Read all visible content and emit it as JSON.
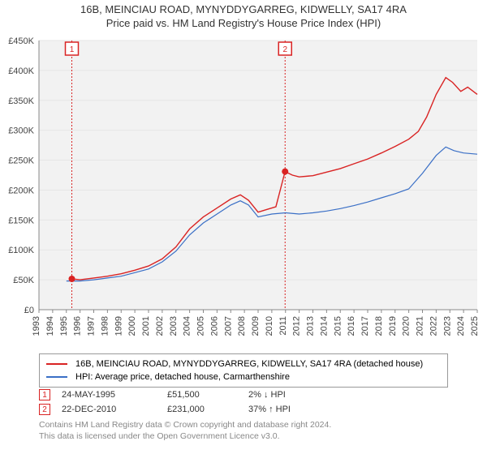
{
  "title_line1": "16B, MEINCIAU ROAD, MYNYDDYGARREG, KIDWELLY, SA17 4RA",
  "title_line2": "Price paid vs. HM Land Registry's House Price Index (HPI)",
  "chart": {
    "type": "line",
    "background_color": "#f2f2f2",
    "grid_color": "#e6e6e6",
    "axis_color": "#888888",
    "ylabel_prefix": "£",
    "ylim": [
      0,
      450000
    ],
    "ytick_step": 50000,
    "yticks": [
      "£0",
      "£50K",
      "£100K",
      "£150K",
      "£200K",
      "£250K",
      "£300K",
      "£350K",
      "£400K",
      "£450K"
    ],
    "xlim": [
      1993,
      2025
    ],
    "xticks": [
      1993,
      1994,
      1995,
      1996,
      1997,
      1998,
      1999,
      2000,
      2001,
      2002,
      2003,
      2004,
      2005,
      2006,
      2007,
      2008,
      2009,
      2010,
      2011,
      2012,
      2013,
      2014,
      2015,
      2016,
      2017,
      2018,
      2019,
      2020,
      2021,
      2022,
      2023,
      2024,
      2025
    ],
    "label_fontsize": 11,
    "series": [
      {
        "name": "property",
        "color": "#d92323",
        "width": 1.4,
        "legend": "16B, MEINCIAU ROAD, MYNYDDYGARREG, KIDWELLY, SA17 4RA (detached house)",
        "points": [
          [
            1995.4,
            51500
          ],
          [
            1996,
            50000
          ],
          [
            1997,
            53000
          ],
          [
            1998,
            56000
          ],
          [
            1999,
            60000
          ],
          [
            2000,
            66000
          ],
          [
            2001,
            73000
          ],
          [
            2002,
            85000
          ],
          [
            2003,
            105000
          ],
          [
            2004,
            135000
          ],
          [
            2005,
            155000
          ],
          [
            2006,
            170000
          ],
          [
            2007,
            185000
          ],
          [
            2007.7,
            192000
          ],
          [
            2008.3,
            183000
          ],
          [
            2009,
            163000
          ],
          [
            2009.7,
            168000
          ],
          [
            2010.3,
            172000
          ],
          [
            2010.97,
            231000
          ],
          [
            2011.5,
            225000
          ],
          [
            2012,
            222000
          ],
          [
            2013,
            224000
          ],
          [
            2014,
            230000
          ],
          [
            2015,
            236000
          ],
          [
            2016,
            244000
          ],
          [
            2017,
            252000
          ],
          [
            2018,
            262000
          ],
          [
            2019,
            273000
          ],
          [
            2020,
            285000
          ],
          [
            2020.7,
            298000
          ],
          [
            2021.3,
            322000
          ],
          [
            2022,
            360000
          ],
          [
            2022.7,
            388000
          ],
          [
            2023.2,
            380000
          ],
          [
            2023.8,
            365000
          ],
          [
            2024.3,
            372000
          ],
          [
            2025,
            360000
          ]
        ]
      },
      {
        "name": "hpi",
        "color": "#3a6fc6",
        "width": 1.2,
        "legend": "HPI: Average price, detached house, Carmarthenshire",
        "points": [
          [
            1995,
            48000
          ],
          [
            1996,
            48000
          ],
          [
            1997,
            50000
          ],
          [
            1998,
            53000
          ],
          [
            1999,
            56000
          ],
          [
            2000,
            62000
          ],
          [
            2001,
            68000
          ],
          [
            2002,
            80000
          ],
          [
            2003,
            98000
          ],
          [
            2004,
            125000
          ],
          [
            2005,
            145000
          ],
          [
            2006,
            160000
          ],
          [
            2007,
            175000
          ],
          [
            2007.7,
            182000
          ],
          [
            2008.3,
            175000
          ],
          [
            2009,
            155000
          ],
          [
            2010,
            160000
          ],
          [
            2011,
            162000
          ],
          [
            2012,
            160000
          ],
          [
            2013,
            162000
          ],
          [
            2014,
            165000
          ],
          [
            2015,
            169000
          ],
          [
            2016,
            174000
          ],
          [
            2017,
            180000
          ],
          [
            2018,
            187000
          ],
          [
            2019,
            194000
          ],
          [
            2020,
            202000
          ],
          [
            2021,
            228000
          ],
          [
            2022,
            258000
          ],
          [
            2022.7,
            272000
          ],
          [
            2023.3,
            266000
          ],
          [
            2024,
            262000
          ],
          [
            2025,
            260000
          ]
        ]
      }
    ],
    "markers": [
      {
        "n": "1",
        "x": 1995.4,
        "y": 51500
      },
      {
        "n": "2",
        "x": 2010.97,
        "y": 231000
      }
    ]
  },
  "legend": {
    "border_color": "#999999",
    "fontsize": 11
  },
  "datapoints": [
    {
      "n": "1",
      "date": "24-MAY-1995",
      "price": "£51,500",
      "diff": "2% ↓ HPI"
    },
    {
      "n": "2",
      "date": "22-DEC-2010",
      "price": "£231,000",
      "diff": "37% ↑ HPI"
    }
  ],
  "footer_line1": "Contains HM Land Registry data © Crown copyright and database right 2024.",
  "footer_line2": "This data is licensed under the Open Government Licence v3.0."
}
